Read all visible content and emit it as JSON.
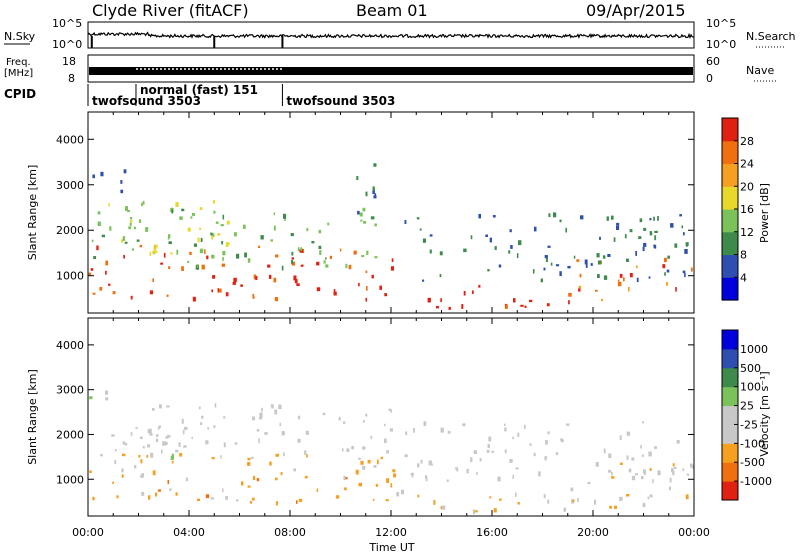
{
  "header": {
    "station": "Clyde River (fitACF)",
    "beam": "Beam 01",
    "date": "09/Apr/2015"
  },
  "noise_panel": {
    "left_label": "N.Sky",
    "left_ticks": [
      "10^5",
      "10^0"
    ],
    "right_ticks": [
      "10^5",
      "10^0"
    ],
    "right_label": "N.Search"
  },
  "freq_panel": {
    "left_label_1": "Freq.",
    "left_label_2": "[MHz]",
    "left_ticks": [
      "18",
      "8"
    ],
    "right_ticks": [
      "60",
      "0"
    ],
    "right_label": "Nave"
  },
  "cpid": {
    "label": "CPID",
    "programs": [
      {
        "name": "twofsound 3503",
        "start_hour": 0.0,
        "end_hour": 1.9
      },
      {
        "name": "normal (fast) 151",
        "start_hour": 1.9,
        "end_hour": 7.7
      },
      {
        "name": "twofsound 3503",
        "start_hour": 7.7,
        "end_hour": 24.0
      }
    ]
  },
  "colorbars": {
    "power": {
      "label": "Power [dB]",
      "ticks": [
        "4",
        "8",
        "12",
        "16",
        "20",
        "24",
        "28"
      ]
    },
    "velocity": {
      "label": "Velocity [m s⁻¹]",
      "ticks": [
        "-1000",
        "-500",
        "-100",
        "-25",
        "25",
        "100",
        "500",
        "1000"
      ]
    }
  },
  "chart_data": {
    "type": "heatmap",
    "xlabel": "Time UT",
    "ylabel": "Slant Range [km]",
    "x_ticks": [
      "00:00",
      "04:00",
      "08:00",
      "12:00",
      "16:00",
      "20:00",
      "00:00"
    ],
    "y_ticks": [
      "1000",
      "2000",
      "3000",
      "4000"
    ],
    "xlim_hours": [
      0,
      24
    ],
    "ylim_km": [
      180,
      4600
    ],
    "panels": [
      {
        "quantity": "Power",
        "units": "dB",
        "scale": [
          0,
          30
        ],
        "colors": [
          "#0000dd",
          "#2f4fb0",
          "#3d8a4a",
          "#7cc25a",
          "#e8d82a",
          "#f5a020",
          "#f07010",
          "#e02010"
        ],
        "regions": [
          {
            "t0": 0.0,
            "t1": 12.5,
            "r0": 500,
            "r1": 1700,
            "level": 26
          },
          {
            "t0": 0.0,
            "t1": 12.0,
            "r0": 1200,
            "r1": 2500,
            "level": 12
          },
          {
            "t0": 0.8,
            "t1": 5.8,
            "r0": 1500,
            "r1": 2700,
            "level": 16
          },
          {
            "t0": 0.0,
            "t1": 1.5,
            "r0": 2700,
            "r1": 3400,
            "level": 6
          },
          {
            "t0": 10.6,
            "t1": 12.0,
            "r0": 2400,
            "r1": 3500,
            "level": 8
          },
          {
            "t0": 12.6,
            "t1": 19.0,
            "r0": 300,
            "r1": 800,
            "level": 28
          },
          {
            "t0": 19.0,
            "t1": 24.0,
            "r0": 400,
            "r1": 1400,
            "level": 24
          },
          {
            "t0": 12.5,
            "t1": 24.0,
            "r0": 900,
            "r1": 2400,
            "level": 8
          }
        ]
      },
      {
        "quantity": "Velocity",
        "units": "m s-1",
        "scale": [
          -1000,
          1000
        ],
        "colors": [
          "#e02010",
          "#f07010",
          "#f5a020",
          "#c8c8c8",
          "#c8c8c8",
          "#7cc25a",
          "#3d8a4a",
          "#2f4fb0",
          "#0000dd"
        ],
        "regions": [
          {
            "t0": 0.0,
            "t1": 12.5,
            "r0": 500,
            "r1": 1600,
            "level": -400
          },
          {
            "t0": 0.0,
            "t1": 4.0,
            "r0": 1300,
            "r1": 2200,
            "level": 0
          },
          {
            "t0": 0.0,
            "t1": 1.0,
            "r0": 2800,
            "r1": 3400,
            "level": 10
          },
          {
            "t0": 1.0,
            "t1": 12.0,
            "r0": 1600,
            "r1": 2700,
            "level": -150
          },
          {
            "t0": 12.6,
            "t1": 19.0,
            "r0": 300,
            "r1": 800,
            "level": -300
          },
          {
            "t0": 19.0,
            "t1": 24.0,
            "r0": 400,
            "r1": 1400,
            "level": -250
          },
          {
            "t0": 12.5,
            "t1": 24.0,
            "r0": 900,
            "r1": 2300,
            "level": -120
          }
        ]
      }
    ]
  }
}
